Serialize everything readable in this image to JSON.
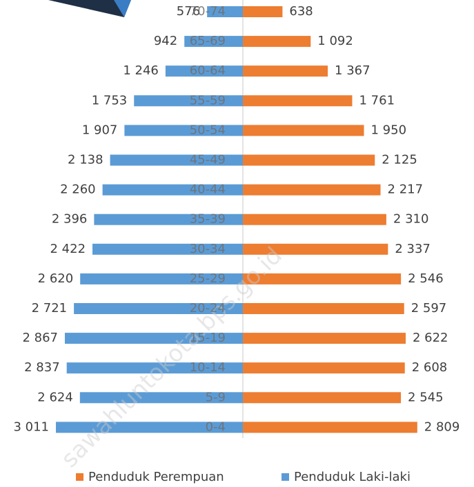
{
  "chart_data": {
    "type": "pyramid",
    "categories": [
      "70-74",
      "65-69",
      "60-64",
      "55-59",
      "50-54",
      "45-49",
      "40-44",
      "35-39",
      "30-34",
      "25-29",
      "20-24",
      "15-19",
      "10-14",
      "5-9",
      "0-4"
    ],
    "series": [
      {
        "name": "Penduduk Perempuan",
        "color": "#ed7d31",
        "values": [
          638,
          1092,
          1367,
          1761,
          1950,
          2125,
          2217,
          2310,
          2337,
          2546,
          2597,
          2622,
          2608,
          2545,
          2809
        ],
        "value_labels": [
          "638",
          "1 092",
          "1 367",
          "1 761",
          "1 950",
          "2 125",
          "2 217",
          "2 310",
          "2 337",
          "2 546",
          "2 597",
          "2 622",
          "2 608",
          "2 545",
          "2 809"
        ]
      },
      {
        "name": "Penduduk Laki-laki",
        "color": "#5b9bd5",
        "values": [
          576,
          942,
          1246,
          1753,
          1907,
          2138,
          2260,
          2396,
          2422,
          2620,
          2721,
          2867,
          2837,
          2624,
          3011
        ],
        "value_labels": [
          "576",
          "942",
          "1 246",
          "1 753",
          "1 907",
          "2 138",
          "2 260",
          "2 396",
          "2 422",
          "2 620",
          "2 721",
          "2 867",
          "2 837",
          "2 624",
          "3 011"
        ]
      }
    ],
    "watermark": "sawahluntokota.bps.go.id"
  }
}
